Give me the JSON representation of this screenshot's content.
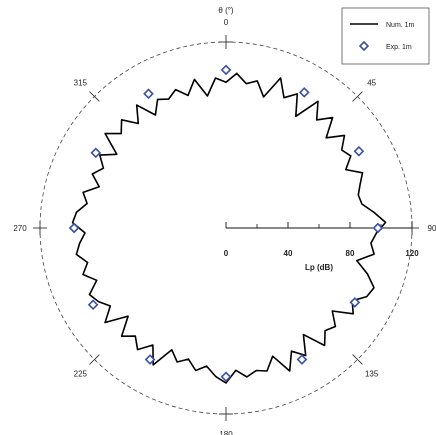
{
  "chart_data": {
    "type": "polar-line-scatter",
    "theta_label": "θ (°)",
    "angle_ticks": [
      {
        "angle": 0,
        "label": "0"
      },
      {
        "angle": 45,
        "label": "45"
      },
      {
        "angle": 90,
        "label": "90"
      },
      {
        "angle": 135,
        "label": "135"
      },
      {
        "angle": 180,
        "label": "180"
      },
      {
        "angle": 225,
        "label": "225"
      },
      {
        "angle": 270,
        "label": "270"
      },
      {
        "angle": 315,
        "label": "315"
      }
    ],
    "radial_axis": {
      "label": "Lp (dB)",
      "range": [
        0,
        120
      ],
      "ticks": [
        {
          "value": 0,
          "label": "0"
        },
        {
          "value": 40,
          "label": "40"
        },
        {
          "value": 80,
          "label": "80"
        },
        {
          "value": 120,
          "label": "120"
        }
      ],
      "minor_ticks": [
        20,
        60,
        100
      ]
    },
    "legend_position": "top-right",
    "series": [
      {
        "name": "Num. 1m",
        "kind": "line",
        "color": "#000000",
        "angles": [
          0,
          4,
          8,
          12,
          16,
          20,
          24,
          28,
          32,
          36,
          40,
          44,
          48,
          52,
          56,
          60,
          64,
          68,
          72,
          76,
          80,
          84,
          88,
          92,
          96,
          100,
          104,
          108,
          112,
          116,
          120,
          124,
          128,
          132,
          136,
          140,
          144,
          148,
          152,
          156,
          160,
          164,
          168,
          172,
          176,
          180,
          184,
          188,
          192,
          196,
          200,
          204,
          208,
          212,
          216,
          220,
          224,
          228,
          232,
          236,
          240,
          244,
          248,
          252,
          256,
          260,
          264,
          268,
          272,
          276,
          280,
          284,
          288,
          292,
          296,
          300,
          304,
          308,
          312,
          316,
          320,
          324,
          328,
          332,
          336,
          340,
          344,
          348,
          352,
          356
        ],
        "values": [
          94,
          100,
          94,
          97,
          88,
          103,
          92,
          98,
          85,
          101,
          91,
          99,
          87,
          97,
          90,
          93,
          86,
          95,
          91,
          88,
          89,
          96,
          103,
          97,
          94,
          97,
          87,
          96,
          103,
          101,
          94,
          99,
          87,
          95,
          92,
          99,
          85,
          97,
          90,
          101,
          88,
          96,
          94,
          97,
          92,
          100,
          96,
          90,
          94,
          88,
          92,
          86,
          100,
          89,
          97,
          91,
          97,
          85,
          99,
          90,
          95,
          98,
          90,
          97,
          92,
          98,
          95,
          91,
          99,
          97,
          91,
          95,
          86,
          93,
          88,
          94,
          85,
          99,
          91,
          97,
          88,
          98,
          86,
          94,
          91,
          95,
          89,
          98,
          86,
          97
        ]
      },
      {
        "name": "Exp. 1m",
        "kind": "scatter",
        "color": "#3a50a3",
        "angles": [
          0,
          30,
          60,
          90,
          120,
          150,
          180,
          210,
          240,
          270,
          300,
          330
        ],
        "values": [
          102,
          101,
          99,
          98,
          96,
          98,
          96,
          98,
          99,
          98,
          97,
          100
        ]
      }
    ]
  }
}
